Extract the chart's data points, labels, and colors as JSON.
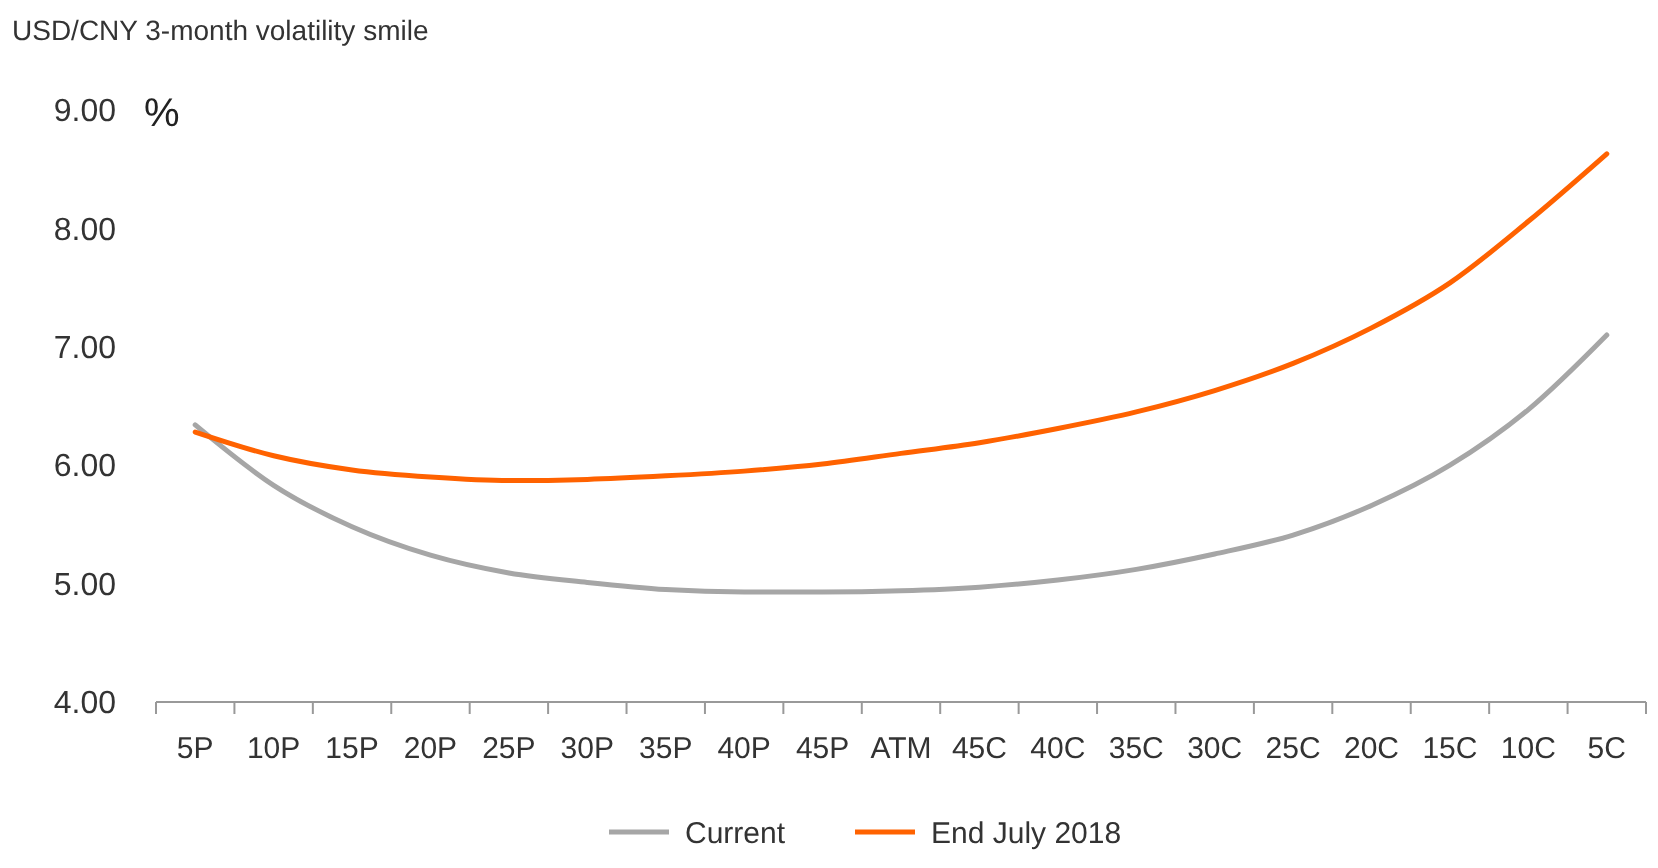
{
  "chart_data": {
    "type": "line",
    "title": "USD/CNY 3-month volatility smile",
    "ylabel": "%",
    "categories": [
      "5P",
      "10P",
      "15P",
      "20P",
      "25P",
      "30P",
      "35P",
      "40P",
      "45P",
      "ATM",
      "45C",
      "40C",
      "35C",
      "30C",
      "25C",
      "20C",
      "15C",
      "10C",
      "5C"
    ],
    "series": [
      {
        "name": "Current",
        "color": "#a6a6a6",
        "values": [
          6.34,
          5.83,
          5.48,
          5.24,
          5.09,
          5.01,
          4.95,
          4.93,
          4.93,
          4.94,
          4.97,
          5.03,
          5.12,
          5.25,
          5.41,
          5.66,
          6.0,
          6.47,
          7.1
        ]
      },
      {
        "name": "End July 2018",
        "color": "#ff6200",
        "values": [
          6.28,
          6.08,
          5.96,
          5.9,
          5.87,
          5.88,
          5.91,
          5.95,
          6.01,
          6.1,
          6.19,
          6.31,
          6.45,
          6.63,
          6.86,
          7.16,
          7.54,
          8.06,
          8.63
        ]
      }
    ],
    "ylim": [
      4,
      9
    ],
    "yticks": [
      {
        "value": 4,
        "label": "4.00"
      },
      {
        "value": 5,
        "label": "5.00"
      },
      {
        "value": 6,
        "label": "6.00"
      },
      {
        "value": 7,
        "label": "7.00"
      },
      {
        "value": 8,
        "label": "8.00"
      },
      {
        "value": 9,
        "label": "9.00"
      }
    ],
    "grid": false,
    "legend": "bottom",
    "marker": "none",
    "line_style": "solid"
  }
}
